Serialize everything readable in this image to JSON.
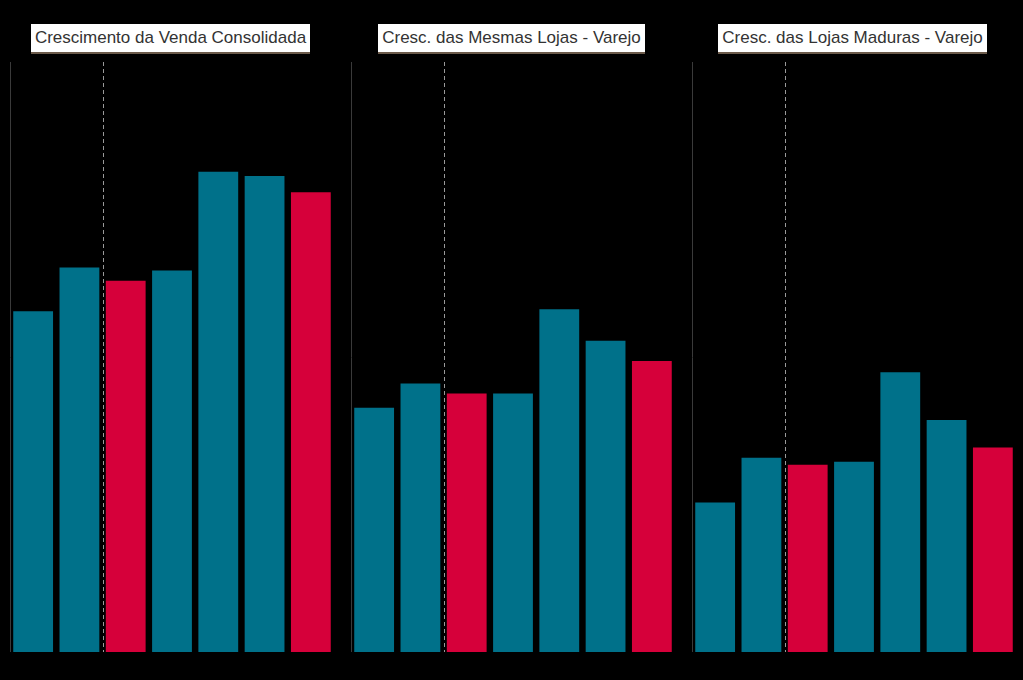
{
  "chart_data": [
    {
      "type": "bar",
      "title": "Crescimento da Venda Consolidada",
      "categories": [
        null,
        null,
        null,
        null,
        null,
        null,
        null
      ],
      "values": [
        33.5,
        37.8,
        36.5,
        37.5,
        47.2,
        46.8,
        45.2
      ],
      "colors": [
        "#00718a",
        "#00718a",
        "#d6003a",
        "#00718a",
        "#00718a",
        "#00718a",
        "#d6003a"
      ],
      "ylim": [
        0,
        58
      ],
      "vlines": [
        1.5
      ],
      "grid": false,
      "tick_labels": false
    },
    {
      "type": "bar",
      "title": "Cresc. das Mesmas Lojas - Varejo",
      "categories": [
        null,
        null,
        null,
        null,
        null,
        null,
        null
      ],
      "values": [
        24.0,
        26.4,
        25.4,
        25.4,
        33.7,
        30.6,
        28.6
      ],
      "colors": [
        "#00718a",
        "#00718a",
        "#d6003a",
        "#00718a",
        "#00718a",
        "#00718a",
        "#d6003a"
      ],
      "ylim": [
        0,
        58
      ],
      "vlines": [
        1.5
      ],
      "grid": false,
      "tick_labels": false
    },
    {
      "type": "bar",
      "title": "Cresc. das Lojas Maduras - Varejo",
      "categories": [
        null,
        null,
        null,
        null,
        null,
        null,
        null
      ],
      "values": [
        14.7,
        19.1,
        18.4,
        18.7,
        27.5,
        22.8,
        20.1
      ],
      "colors": [
        "#00718a",
        "#00718a",
        "#d6003a",
        "#00718a",
        "#00718a",
        "#00718a",
        "#d6003a"
      ],
      "ylim": [
        0,
        58
      ],
      "vlines": [
        1.5
      ],
      "grid": false,
      "tick_labels": false
    }
  ]
}
